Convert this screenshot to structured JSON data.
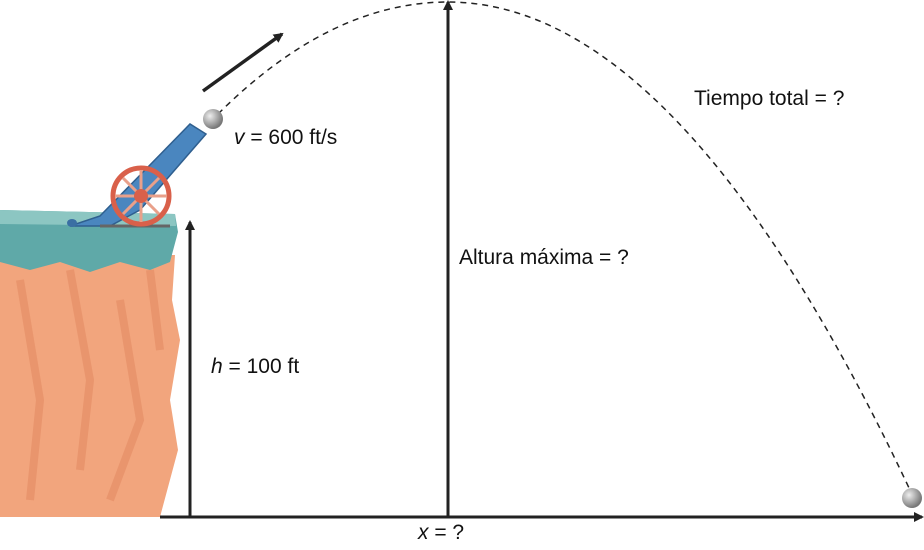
{
  "labels": {
    "velocity": {
      "var": "v",
      "text": " = 600 ft/s"
    },
    "height": {
      "var": "h",
      "text": " = 100 ft"
    },
    "max_height": "Altura máxima = ?",
    "total_time": "Tiempo total = ?",
    "distance": {
      "var": "x",
      "text": " = ?"
    }
  },
  "colors": {
    "cliff": "#f0a27a",
    "grass": "#5fa9a8",
    "cannon": "#4a86bf",
    "wheel": "#d9604a",
    "ball": "#9a9a9a",
    "lines": "#222222"
  }
}
